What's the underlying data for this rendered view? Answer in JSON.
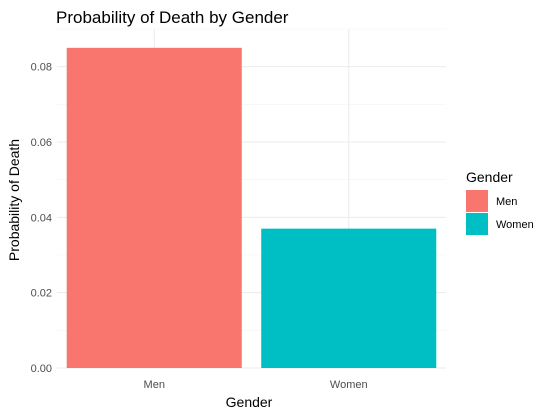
{
  "chart_data": {
    "type": "bar",
    "title": "Probability of Death by Gender",
    "xlabel": "Gender",
    "ylabel": "Probability of Death",
    "categories": [
      "Men",
      "Women"
    ],
    "values": [
      0.085,
      0.037
    ],
    "colors": [
      "#F8766D",
      "#00BFC4"
    ],
    "ylim": [
      0,
      0.09
    ],
    "yticks": [
      0.0,
      0.02,
      0.04,
      0.06,
      0.08
    ],
    "ytick_labels": [
      "0.00",
      "0.02",
      "0.04",
      "0.06",
      "0.08"
    ],
    "grid": true,
    "legend": {
      "title": "Gender",
      "position": "right",
      "entries": [
        "Men",
        "Women"
      ]
    }
  }
}
